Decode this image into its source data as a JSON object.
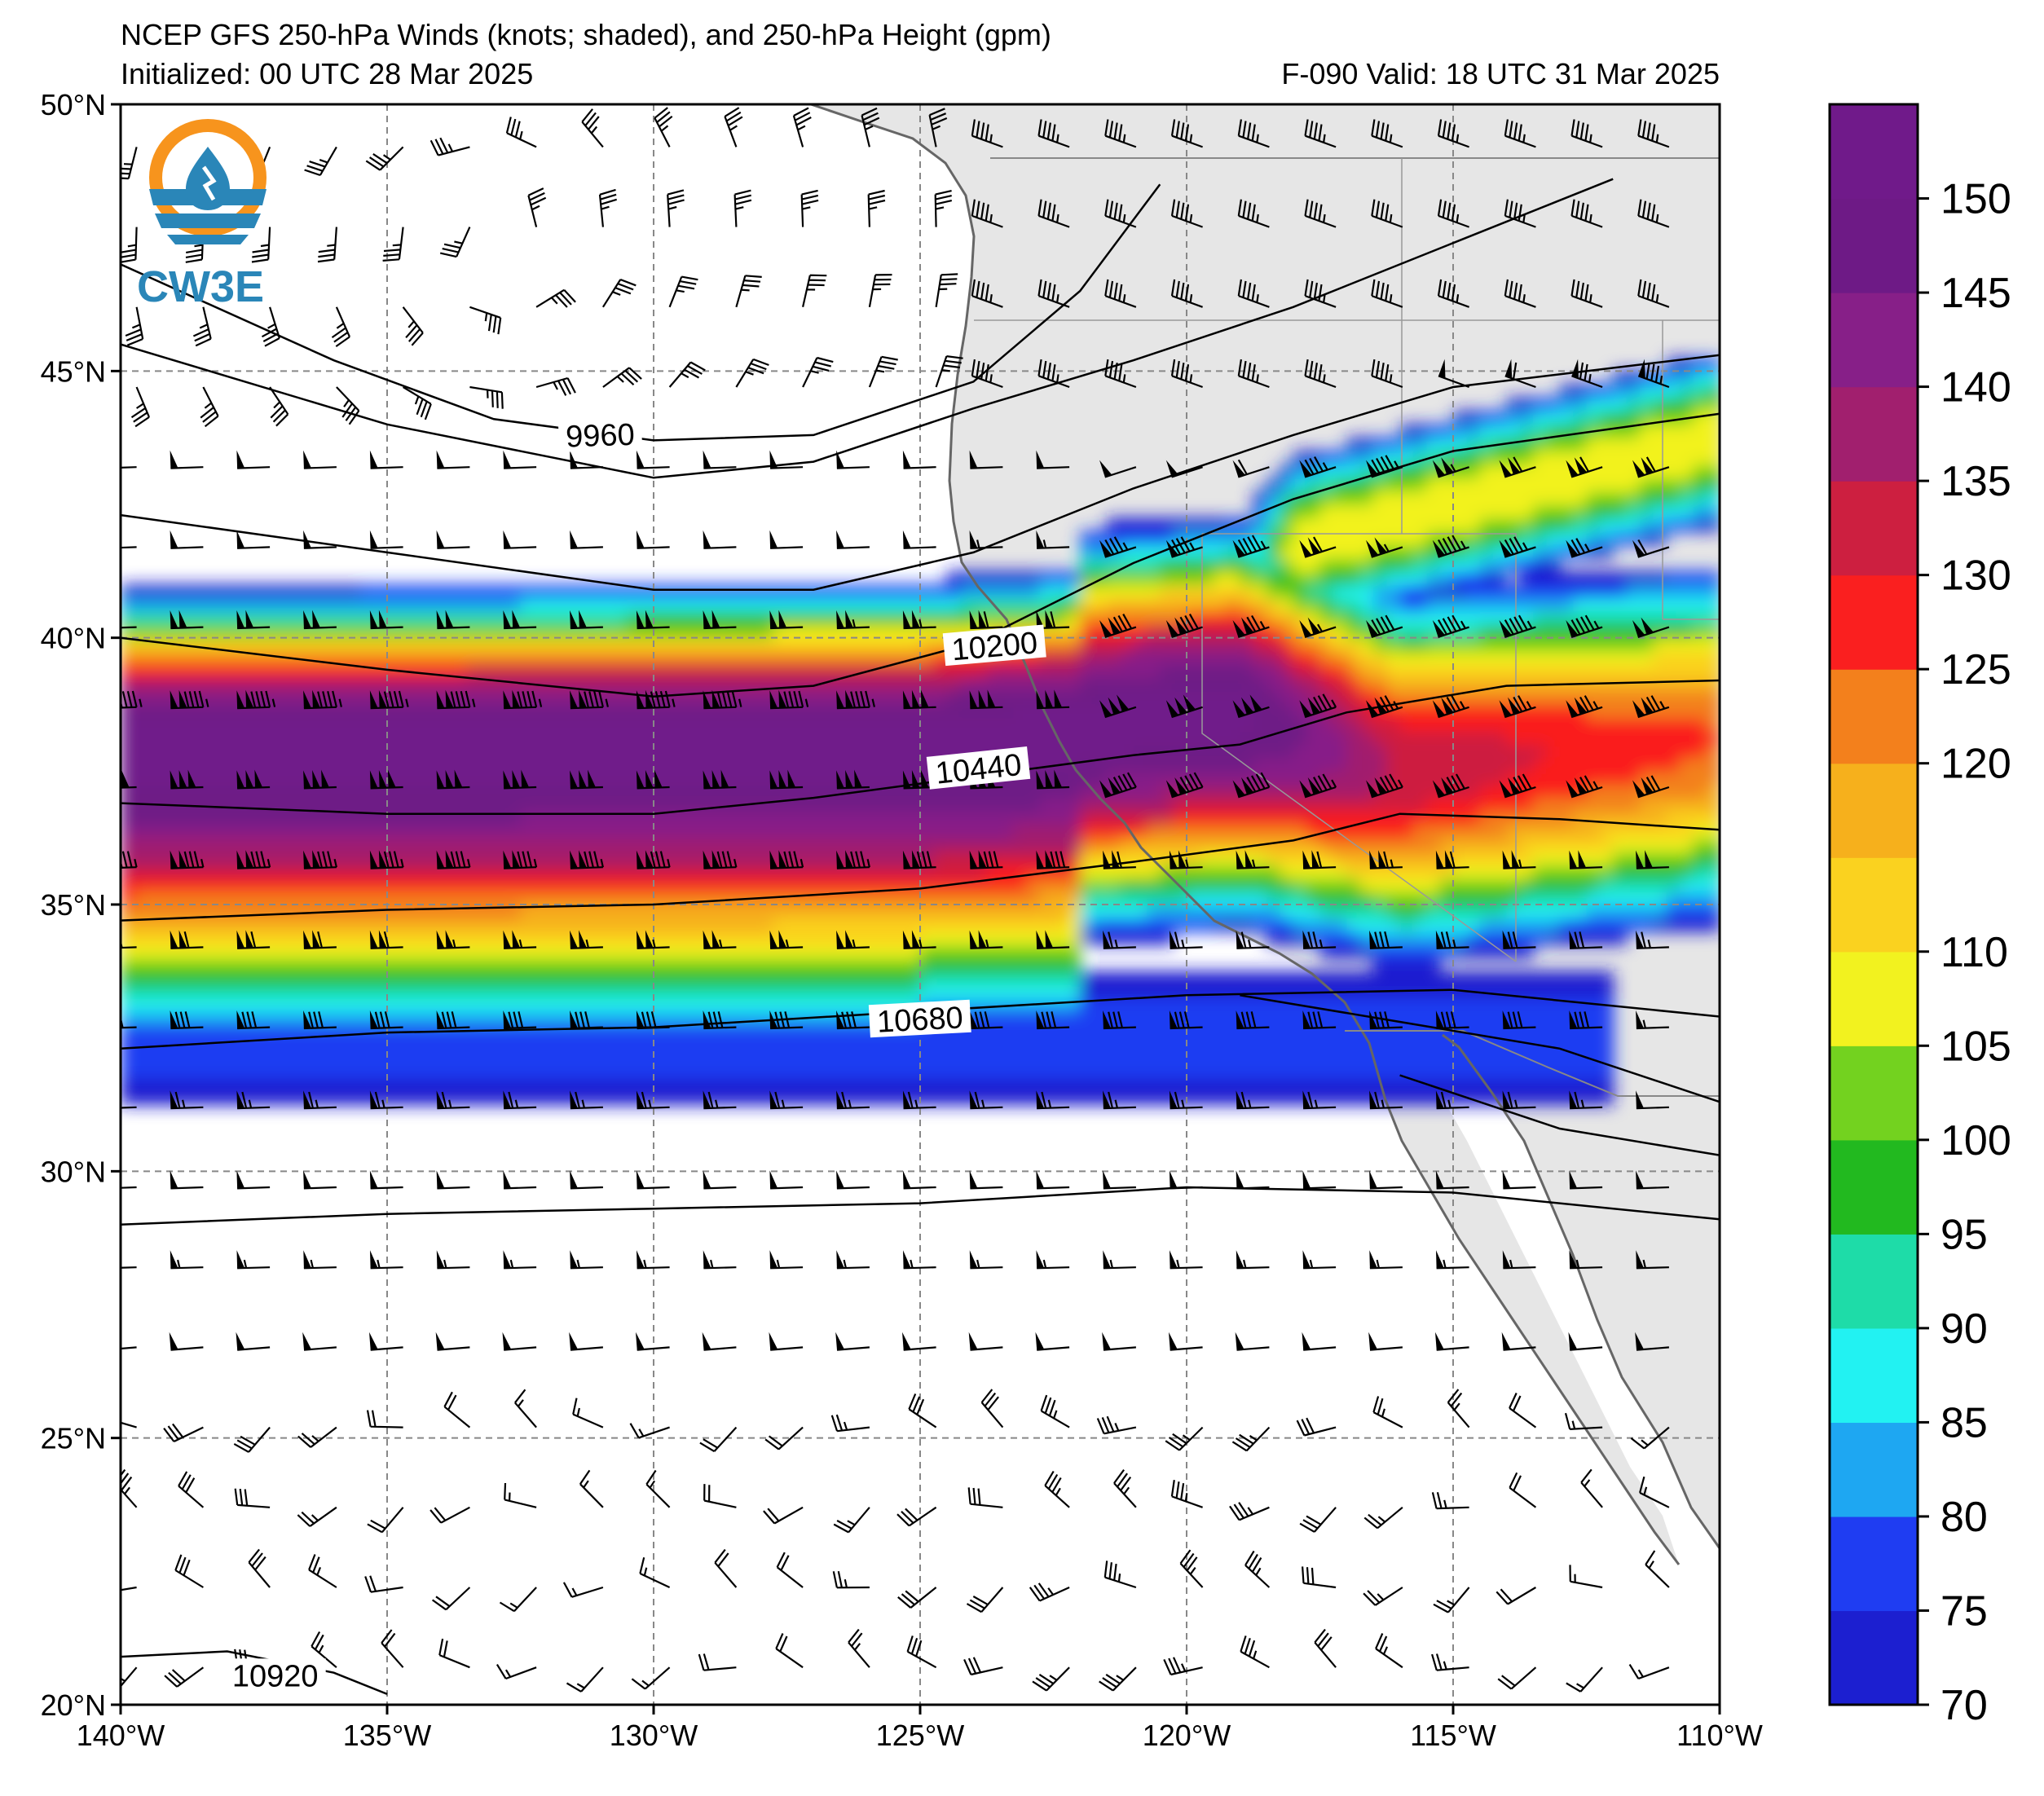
{
  "header": {
    "title_line1": "NCEP GFS 250-hPa Winds (knots; shaded), and 250-hPa Height (gpm)",
    "initialized": "Initialized: 00 UTC 28 Mar 2025",
    "valid": "F-090  Valid: 18 UTC 31 Mar 2025"
  },
  "logo": {
    "text": "CW3E",
    "icon": "cw3e-logo-icon"
  },
  "map": {
    "lon_range": [
      -140,
      -110
    ],
    "lat_range": [
      20,
      50
    ],
    "lon_ticks": [
      "140°W",
      "135°W",
      "130°W",
      "125°W",
      "120°W",
      "115°W",
      "110°W"
    ],
    "lat_ticks": [
      "50°N",
      "45°N",
      "40°N",
      "35°N",
      "30°N",
      "25°N",
      "20°N"
    ],
    "gridlines": "dashed",
    "land_color": "#e6e6e6",
    "coast_color": "#666666"
  },
  "colorbar": {
    "ticks": [
      "70",
      "75",
      "80",
      "85",
      "90",
      "95",
      "100",
      "105",
      "110",
      "120",
      "125",
      "130",
      "135",
      "140",
      "145",
      "150"
    ],
    "levels": [
      70,
      75,
      80,
      85,
      90,
      95,
      100,
      105,
      110,
      115,
      120,
      125,
      130,
      135,
      140,
      145,
      150,
      155
    ],
    "colors": [
      "#1c1fd0",
      "#1f3df2",
      "#1ea7f2",
      "#22f2f2",
      "#1edca8",
      "#22b91f",
      "#73d21f",
      "#f2f21f",
      "#fad21f",
      "#f6b01c",
      "#f3801c",
      "#fa1f1f",
      "#cd1f40",
      "#a11f6e",
      "#871f88",
      "#6e1a86",
      "#701a8a"
    ]
  },
  "contours": [
    {
      "label": "9960",
      "lat_at_lon": [
        [
          -140,
          47.0
        ],
        [
          -136,
          45.2
        ],
        [
          -133,
          44.1
        ],
        [
          -130,
          43.7
        ],
        [
          -127,
          43.8
        ],
        [
          -124,
          44.8
        ],
        [
          -122,
          46.5
        ],
        [
          -120.5,
          48.5
        ]
      ]
    },
    {
      "label": "10200",
      "lat_at_lon": [
        [
          -140,
          40.0
        ],
        [
          -135,
          39.4
        ],
        [
          -130,
          38.9
        ],
        [
          -127,
          39.1
        ],
        [
          -124,
          39.9
        ],
        [
          -121,
          41.4
        ],
        [
          -118,
          42.6
        ],
        [
          -115,
          43.5
        ],
        [
          -110,
          44.2
        ]
      ]
    },
    {
      "label": "10440",
      "lat_at_lon": [
        [
          -140,
          36.9
        ],
        [
          -135,
          36.7
        ],
        [
          -130,
          36.7
        ],
        [
          -127,
          37.0
        ],
        [
          -124,
          37.4
        ],
        [
          -121,
          37.8
        ],
        [
          -119,
          38.0
        ],
        [
          -117,
          38.6
        ],
        [
          -114,
          39.1
        ],
        [
          -110,
          39.2
        ]
      ]
    },
    {
      "label": "10680",
      "lat_at_lon": [
        [
          -140,
          32.3
        ],
        [
          -135,
          32.6
        ],
        [
          -130,
          32.7
        ],
        [
          -125,
          33.0
        ],
        [
          -120,
          33.3
        ],
        [
          -115,
          33.4
        ],
        [
          -112,
          33.1
        ],
        [
          -110,
          32.9
        ]
      ]
    },
    {
      "label": "10920",
      "lat_at_lon": [
        [
          -140,
          20.9
        ],
        [
          -138,
          21.0
        ],
        [
          -136,
          20.6
        ],
        [
          -135,
          20.2
        ]
      ]
    }
  ]
}
